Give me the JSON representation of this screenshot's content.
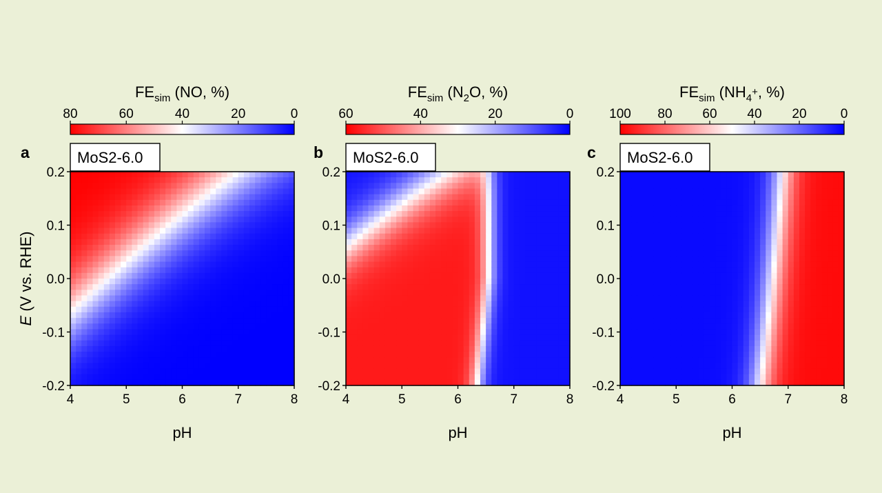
{
  "chart_data": [
    {
      "type": "heatmap",
      "panel": "a",
      "sample_label": "MoS2-6.0",
      "colorbar": {
        "title": "FEsim (NO, %)",
        "title_main": "FE",
        "title_sub": "sim",
        "title_rest": " (NO, %)",
        "ticks": [
          "80",
          "60",
          "40",
          "20",
          "0"
        ],
        "range": [
          80,
          0
        ],
        "colors": [
          "#ff0000",
          "#ffffff",
          "#0000ff"
        ]
      },
      "xlabel": "pH",
      "ylabel": "E (V vs. RHE)",
      "ylabel_italic": "E",
      "ylabel_rest": " (V vs. RHE)",
      "xlim": [
        4,
        8
      ],
      "ylim": [
        -0.2,
        0.2
      ],
      "xticks": [
        "4",
        "5",
        "6",
        "7",
        "8"
      ],
      "yticks": [
        "-0.2",
        "-0.1",
        "0.0",
        "0.1",
        "0.2"
      ],
      "model": "no"
    },
    {
      "type": "heatmap",
      "panel": "b",
      "sample_label": "MoS2-6.0",
      "colorbar": {
        "title": "FEsim (N2O, %)",
        "title_main": "FE",
        "title_sub": "sim",
        "title_rest": " (N2O, %)",
        "ticks": [
          "60",
          "40",
          "20",
          "0"
        ],
        "range": [
          60,
          0
        ],
        "colors": [
          "#ff0000",
          "#ffffff",
          "#0000ff"
        ]
      },
      "xlabel": "pH",
      "ylabel": "",
      "xlim": [
        4,
        8
      ],
      "ylim": [
        -0.2,
        0.2
      ],
      "xticks": [
        "4",
        "5",
        "6",
        "7",
        "8"
      ],
      "yticks": [
        "-0.2",
        "-0.1",
        "0.0",
        "0.1",
        "0.2"
      ],
      "model": "n2o"
    },
    {
      "type": "heatmap",
      "panel": "c",
      "sample_label": "MoS2-6.0",
      "colorbar": {
        "title": "FEsim (NH4+, %)",
        "title_main": "FE",
        "title_sub": "sim",
        "title_rest": " (NH4+, %)",
        "ticks": [
          "100",
          "80",
          "60",
          "40",
          "20",
          "0"
        ],
        "range": [
          100,
          0
        ],
        "colors": [
          "#ff0000",
          "#ffffff",
          "#0000ff"
        ]
      },
      "xlabel": "pH",
      "ylabel": "",
      "xlim": [
        4,
        8
      ],
      "ylim": [
        -0.2,
        0.2
      ],
      "xticks": [
        "4",
        "5",
        "6",
        "7",
        "8"
      ],
      "yticks": [
        "-0.2",
        "-0.1",
        "0.0",
        "0.1",
        "0.2"
      ],
      "model": "nh4"
    }
  ]
}
